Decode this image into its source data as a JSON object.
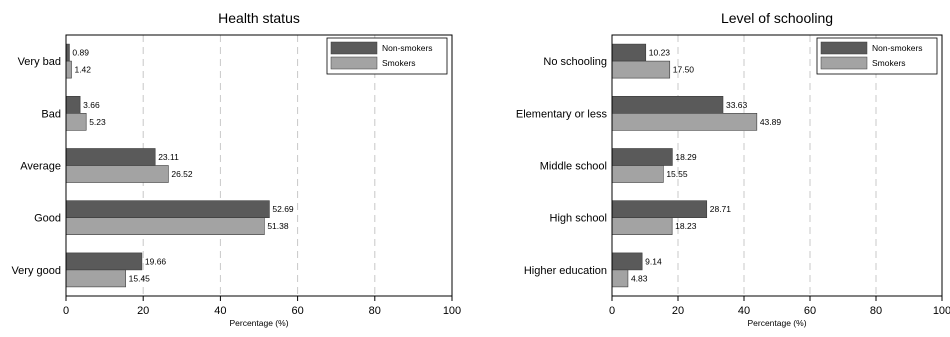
{
  "chart_data": [
    {
      "type": "bar",
      "orientation": "horizontal",
      "title": "Health status",
      "xlabel": "Percentage (%)",
      "xlim": [
        0,
        100
      ],
      "xticks": [
        0,
        20,
        40,
        60,
        80,
        100
      ],
      "grid": "vertical-dashed",
      "legend_position": "top-right",
      "categories": [
        "Very bad",
        "Bad",
        "Average",
        "Good",
        "Very good"
      ],
      "series": [
        {
          "name": "Non-smokers",
          "color": "#5a5a5a",
          "values": [
            0.89,
            3.66,
            23.11,
            52.69,
            19.66
          ],
          "labels": [
            "0.89",
            "3.66",
            "23.11",
            "52.69",
            "19.66"
          ]
        },
        {
          "name": "Smokers",
          "color": "#a3a3a3",
          "values": [
            1.42,
            5.23,
            26.52,
            51.38,
            15.45
          ],
          "labels": [
            "1.42",
            "5.23",
            "26.52",
            "51.38",
            "15.45"
          ]
        }
      ]
    },
    {
      "type": "bar",
      "orientation": "horizontal",
      "title": "Level of schooling",
      "xlabel": "Percentage (%)",
      "xlim": [
        0,
        100
      ],
      "xticks": [
        0,
        20,
        40,
        60,
        80,
        100
      ],
      "grid": "vertical-dashed",
      "legend_position": "top-right",
      "categories": [
        "No schooling",
        "Elementary or less",
        "Middle school",
        "High school",
        "Higher education"
      ],
      "series": [
        {
          "name": "Non-smokers",
          "color": "#5a5a5a",
          "values": [
            10.23,
            33.63,
            18.29,
            28.71,
            9.14
          ],
          "labels": [
            "10.23",
            "33.63",
            "18.29",
            "28.71",
            "9.14"
          ]
        },
        {
          "name": "Smokers",
          "color": "#a3a3a3",
          "values": [
            17.5,
            43.89,
            15.55,
            18.23,
            4.83
          ],
          "labels": [
            "17.50",
            "43.89",
            "15.55",
            "18.23",
            "4.83"
          ]
        }
      ]
    }
  ]
}
